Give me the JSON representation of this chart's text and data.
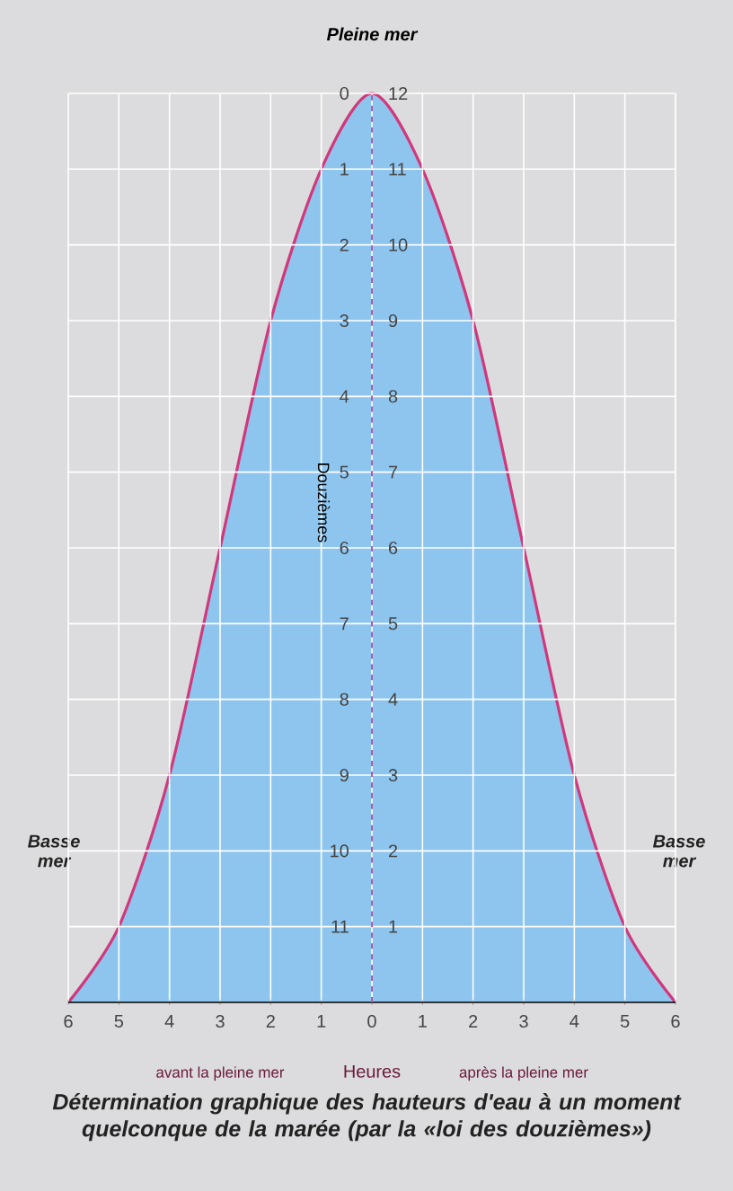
{
  "chart_data": {
    "type": "area",
    "title": "Détermination graphique des hauteurs d'eau à un moment quelconque de la marée (par la «loi des douzièmes»)",
    "xlabel": "Heures",
    "ylabel": "Douzièmes",
    "x": [
      -6,
      -5,
      -4,
      -3,
      -2,
      -1,
      0,
      1,
      2,
      3,
      4,
      5,
      6
    ],
    "series": [
      {
        "axis": "y2",
        "color": "#8ec5ef",
        "values": [
          0,
          1,
          3,
          6,
          9,
          11,
          12,
          11,
          9,
          6,
          3,
          1,
          0
        ]
      }
    ],
    "xlim": [
      -6,
      6
    ],
    "xticks": [
      {
        "value": -6,
        "label": "6"
      },
      {
        "value": -5,
        "label": "5"
      },
      {
        "value": -4,
        "label": "4"
      },
      {
        "value": -3,
        "label": "3"
      },
      {
        "value": -2,
        "label": "2"
      },
      {
        "value": -1,
        "label": "1"
      },
      0,
      1,
      2,
      3,
      4,
      5,
      6
    ],
    "ylim": [
      12,
      0
    ],
    "yticks": [
      0,
      1,
      2,
      3,
      4,
      5,
      6,
      7,
      8,
      9,
      10,
      11
    ],
    "y2lim": [
      0,
      12
    ],
    "y2ticks": [
      1,
      2,
      3,
      4,
      5,
      6,
      7,
      8,
      9,
      10,
      11,
      12
    ],
    "grid": true,
    "ref_lines": [
      {
        "axis": "x",
        "value": 0,
        "color": "#b05aa8",
        "line_style": "dashed"
      }
    ],
    "annotations": [
      "Pleine mer",
      "Basse mer",
      "Basse mer",
      "avant la pleine mer",
      "après la pleine mer"
    ]
  }
}
